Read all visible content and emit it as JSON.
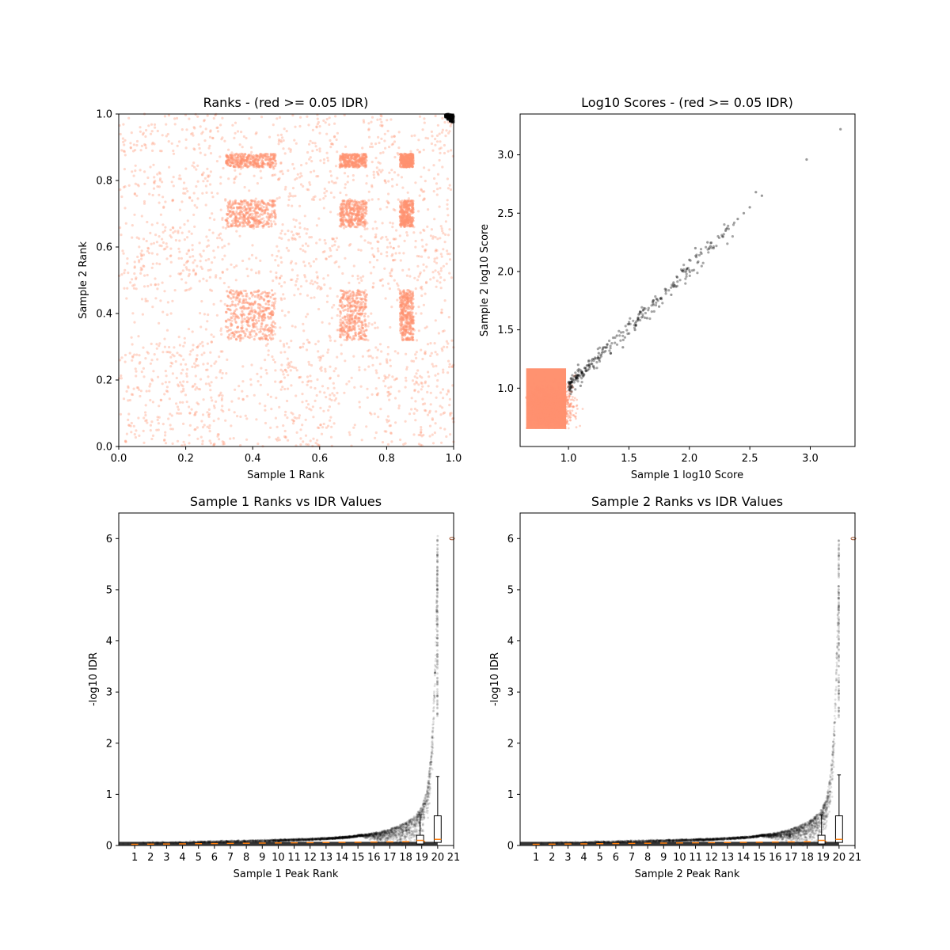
{
  "colors": {
    "fail": "#FF9270",
    "pass": "#000000",
    "median": "#FF7F0E",
    "box": "#000000"
  },
  "chart_data": [
    {
      "type": "scatter",
      "title": "Ranks - (red >= 0.05 IDR)",
      "xlabel": "Sample 1 Rank",
      "ylabel": "Sample 2 Rank",
      "xlim": [
        0,
        1
      ],
      "ylim": [
        0,
        1
      ],
      "xticks": [
        "0.0",
        "0.2",
        "0.4",
        "0.6",
        "0.8",
        "1.0"
      ],
      "yticks": [
        "0.0",
        "0.2",
        "0.4",
        "0.6",
        "0.8",
        "1.0"
      ],
      "series": [
        {
          "role": "fail",
          "description": "dense cloud across full rank space with block structure (dense blocks near 0.32–0.47 and 0.66–0.74)"
        },
        {
          "role": "pass",
          "description": "small cluster at top-right corner (ranks ~0.98–1.0)"
        }
      ],
      "dense_blocks": [
        [
          0.32,
          0.47
        ],
        [
          0.66,
          0.74
        ],
        [
          0.84,
          0.88
        ]
      ]
    },
    {
      "type": "scatter",
      "title": "Log10 Scores - (red >= 0.05 IDR)",
      "xlabel": "Sample 1 log10 Score",
      "ylabel": "Sample 2 log10 Score",
      "xlim": [
        0.6,
        3.37
      ],
      "ylim": [
        0.5,
        3.35
      ],
      "xticks": [
        "1.0",
        "1.5",
        "2.0",
        "2.5",
        "3.0"
      ],
      "yticks": [
        "1.0",
        "1.5",
        "2.0",
        "2.5",
        "3.0"
      ],
      "fail_region": {
        "x": [
          0.65,
          1.15
        ],
        "y": [
          0.65,
          1.25
        ]
      },
      "pass_points": [
        [
          1.0,
          1.05
        ],
        [
          1.02,
          1.0
        ],
        [
          1.05,
          1.1
        ],
        [
          1.1,
          1.02
        ],
        [
          1.08,
          1.2
        ],
        [
          1.15,
          1.15
        ],
        [
          1.2,
          1.25
        ],
        [
          1.25,
          1.3
        ],
        [
          1.3,
          1.35
        ],
        [
          1.35,
          1.3
        ],
        [
          1.4,
          1.45
        ],
        [
          1.45,
          1.35
        ],
        [
          1.5,
          1.55
        ],
        [
          1.55,
          1.5
        ],
        [
          1.6,
          1.65
        ],
        [
          1.65,
          1.6
        ],
        [
          1.7,
          1.75
        ],
        [
          1.75,
          1.7
        ],
        [
          1.8,
          1.85
        ],
        [
          1.85,
          1.8
        ],
        [
          1.9,
          1.95
        ],
        [
          1.95,
          2.0
        ],
        [
          2.0,
          2.1
        ],
        [
          2.05,
          2.2
        ],
        [
          2.15,
          2.25
        ],
        [
          2.2,
          2.2
        ],
        [
          2.3,
          2.35
        ],
        [
          2.4,
          2.45
        ],
        [
          2.45,
          2.5
        ],
        [
          2.5,
          2.55
        ],
        [
          2.55,
          2.68
        ],
        [
          2.6,
          2.65
        ],
        [
          2.97,
          2.96
        ],
        [
          3.25,
          3.22
        ]
      ]
    },
    {
      "type": "scatter",
      "title": "Sample 1 Ranks vs IDR Values",
      "xlabel": "Sample 1 Peak Rank",
      "ylabel": "-log10 IDR",
      "xlim": [
        0,
        21
      ],
      "ylim": [
        0,
        6.5
      ],
      "xticks": [
        "1",
        "2",
        "3",
        "4",
        "5",
        "6",
        "7",
        "8",
        "9",
        "10",
        "11",
        "12",
        "13",
        "14",
        "15",
        "16",
        "17",
        "18",
        "19",
        "20",
        "21"
      ],
      "yticks": [
        "0",
        "1",
        "2",
        "3",
        "4",
        "5",
        "6"
      ],
      "curve": "monotonic increasing: ~0.05 at rank 0 to ~6 at rank 20",
      "boxplots": [
        {
          "pos": 18.9,
          "q1": 0.03,
          "median": 0.1,
          "q3": 0.2,
          "whisker_high": 0.6
        },
        {
          "pos": 20,
          "q1": 0.06,
          "median": 0.12,
          "q3": 0.58,
          "whisker_high": 1.35
        }
      ]
    },
    {
      "type": "scatter",
      "title": "Sample 2 Ranks vs IDR Values",
      "xlabel": "Sample 2 Peak Rank",
      "ylabel": "-log10 IDR",
      "xlim": [
        0,
        21
      ],
      "ylim": [
        0,
        6.5
      ],
      "xticks": [
        "1",
        "2",
        "3",
        "4",
        "5",
        "6",
        "7",
        "8",
        "9",
        "10",
        "11",
        "12",
        "13",
        "14",
        "15",
        "16",
        "17",
        "18",
        "19",
        "20",
        "21"
      ],
      "yticks": [
        "0",
        "1",
        "2",
        "3",
        "4",
        "5",
        "6"
      ],
      "curve": "monotonic increasing: ~0.05 at rank 0 to ~6 at rank 20",
      "boxplots": [
        {
          "pos": 18.9,
          "q1": 0.03,
          "median": 0.1,
          "q3": 0.2,
          "whisker_high": 0.6
        },
        {
          "pos": 20,
          "q1": 0.06,
          "median": 0.12,
          "q3": 0.58,
          "whisker_high": 1.38
        }
      ]
    }
  ]
}
